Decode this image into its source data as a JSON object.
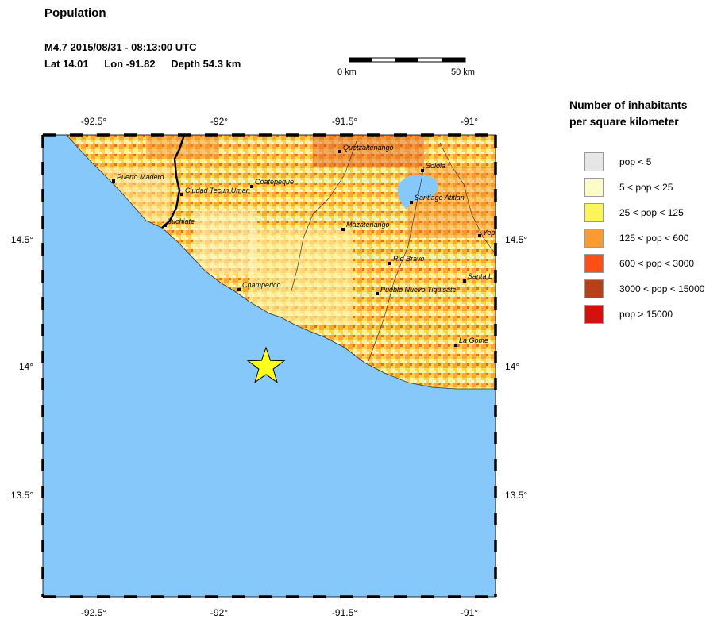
{
  "header": {
    "title": "Population",
    "event_line": "M4.7  2015/08/31 - 08:13:00 UTC",
    "lat": "Lat 14.01",
    "lon": "Lon -91.82",
    "depth": "Depth  54.3 km"
  },
  "scale_bar": {
    "start_label": "0 km",
    "end_label": "50 km"
  },
  "axes": {
    "lon_ticks": [
      "-92.5°",
      "-92°",
      "-91.5°",
      "-91°"
    ],
    "lat_ticks": [
      "14.5°",
      "14°",
      "13.5°"
    ]
  },
  "legend": {
    "title_line1": "Number of inhabitants",
    "title_line2": "per square kilometer",
    "items": [
      {
        "label": "pop < 5",
        "color": "#e6e6e6"
      },
      {
        "label": "5 < pop < 25",
        "color": "#fdfbc8"
      },
      {
        "label": "25 < pop < 125",
        "color": "#fbf55a"
      },
      {
        "label": "125 < pop < 600",
        "color": "#fb9a30"
      },
      {
        "label": "600 < pop < 3000",
        "color": "#fc4f14"
      },
      {
        "label": "3000 < pop < 15000",
        "color": "#b8401a"
      },
      {
        "label": "pop > 15000",
        "color": "#d60f0f"
      }
    ]
  },
  "map": {
    "water_color": "#86c8fa",
    "epicenter_icon": "star-icon",
    "epicenter_color": "#ffff1e",
    "cities": [
      {
        "name": "Quetzaltenango"
      },
      {
        "name": "Solola"
      },
      {
        "name": "Puerto Madero"
      },
      {
        "name": "Coatepeque"
      },
      {
        "name": "Ciudad Tecun Uman"
      },
      {
        "name": "Santiago Atitlan"
      },
      {
        "name": "Suchiate"
      },
      {
        "name": "Mazatenango"
      },
      {
        "name": "Yep"
      },
      {
        "name": "Rio Bravo"
      },
      {
        "name": "Santa L"
      },
      {
        "name": "Champerico"
      },
      {
        "name": "Pueblo Nuevo Tiquisate"
      },
      {
        "name": "La Gome"
      }
    ]
  }
}
